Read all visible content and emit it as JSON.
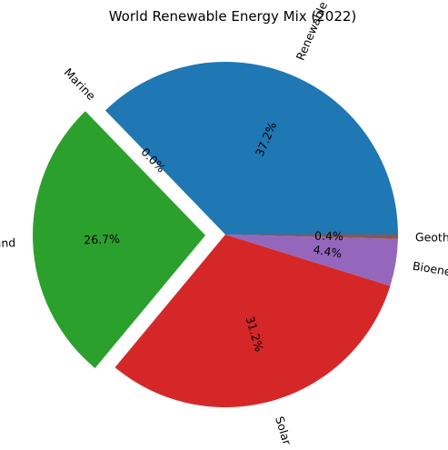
{
  "chart_data": {
    "type": "pie",
    "title": "World Renewable Energy Mix (2022)",
    "slices": [
      {
        "label": "Renewable hydropower",
        "value": 37.2,
        "pct_label": "37.2%",
        "color": "#1f77b4",
        "exploded": false
      },
      {
        "label": "Marine",
        "value": 0.0,
        "pct_label": "0.0%",
        "color": "#ff7f0e",
        "exploded": false
      },
      {
        "label": "Wind",
        "value": 26.7,
        "pct_label": "26.7%",
        "color": "#2ca02c",
        "exploded": true
      },
      {
        "label": "Solar",
        "value": 31.2,
        "pct_label": "31.2%",
        "color": "#d62728",
        "exploded": false
      },
      {
        "label": "Bioenergy",
        "value": 4.4,
        "pct_label": "4.4%",
        "color": "#9467bd",
        "exploded": false
      },
      {
        "label": "Geothermal",
        "value": 0.4,
        "pct_label": "0.4%",
        "color": "#8c564b",
        "exploded": false
      }
    ],
    "start_angle": 0,
    "direction": "counterclockwise",
    "legend": "none"
  }
}
